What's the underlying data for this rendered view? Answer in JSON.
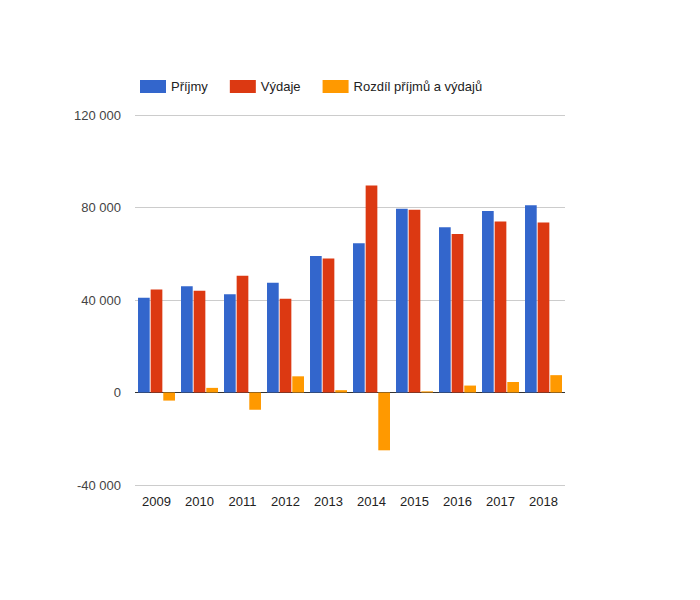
{
  "chart_data": {
    "type": "bar",
    "categories": [
      "2009",
      "2010",
      "2011",
      "2012",
      "2013",
      "2014",
      "2015",
      "2016",
      "2017",
      "2018"
    ],
    "series": [
      {
        "name": "Příjmy",
        "color": "#3366cc",
        "values": [
          41000,
          46000,
          42500,
          47500,
          59000,
          64500,
          79500,
          71500,
          78500,
          81000
        ]
      },
      {
        "name": "Výdaje",
        "color": "#dc3912",
        "values": [
          44500,
          44000,
          50500,
          40500,
          58000,
          89500,
          79000,
          68500,
          74000,
          73500
        ]
      },
      {
        "name": "Rozdíl příjmů a výdajů",
        "color": "#ff9900",
        "values": [
          -3500,
          2000,
          -7500,
          7000,
          1000,
          -25000,
          500,
          3000,
          4500,
          7500
        ]
      }
    ],
    "ylim": [
      -40000,
      120000
    ],
    "yticks": [
      {
        "value": -40000,
        "label": "-40 000"
      },
      0,
      {
        "value": 40000,
        "label": "40 000"
      },
      {
        "value": 80000,
        "label": "80 000"
      },
      {
        "value": 120000,
        "label": "120 000"
      }
    ],
    "grid": true,
    "legend": "top-left"
  }
}
